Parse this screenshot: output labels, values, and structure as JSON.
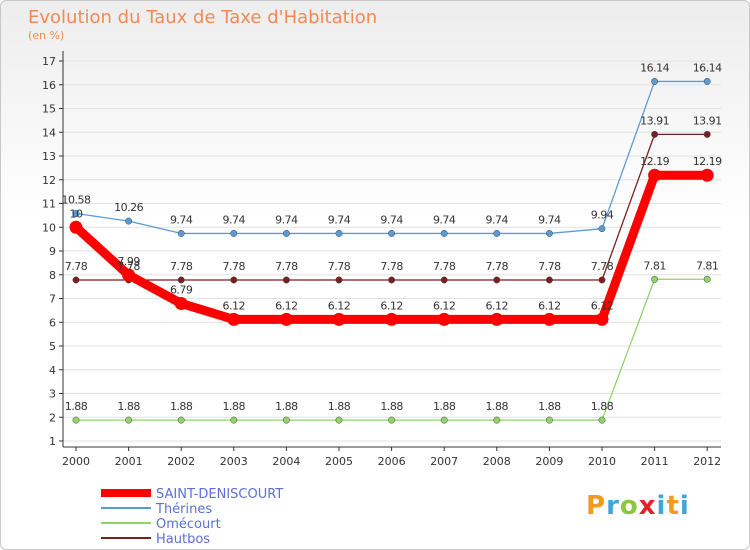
{
  "chart_data": {
    "type": "line",
    "title": "Evolution du Taux de Taxe d'Habitation",
    "subtitle": "(en %)",
    "xlabel": "",
    "ylabel": "(en %)",
    "x": [
      "2000",
      "2001",
      "2002",
      "2003",
      "2004",
      "2005",
      "2006",
      "2007",
      "2008",
      "2009",
      "2010",
      "2011",
      "2012"
    ],
    "ylim": [
      1,
      17
    ],
    "yticks": [
      1,
      2,
      3,
      4,
      5,
      6,
      7,
      8,
      9,
      10,
      11,
      12,
      13,
      14,
      15,
      16,
      17
    ],
    "grid": "horizontal",
    "legend": "bottom-left",
    "series": [
      {
        "name": "SAINT-DENISCOURT",
        "color": "#ff0000",
        "emphasis": true,
        "values": [
          10,
          7.99,
          6.79,
          6.12,
          6.12,
          6.12,
          6.12,
          6.12,
          6.12,
          6.12,
          6.12,
          12.19,
          12.19
        ],
        "labels": [
          "10",
          "7.99",
          "6.79",
          "6.12",
          "6.12",
          "6.12",
          "6.12",
          "6.12",
          "6.12",
          "6.12",
          "6.12",
          "12.19",
          "12.19"
        ]
      },
      {
        "name": "Thérines",
        "color": "#5b9bd5",
        "values": [
          10.58,
          10.26,
          9.74,
          9.74,
          9.74,
          9.74,
          9.74,
          9.74,
          9.74,
          9.74,
          9.94,
          16.14,
          16.14
        ],
        "labels": [
          "10.58",
          "10.26",
          "9.74",
          "9.74",
          "9.74",
          "9.74",
          "9.74",
          "9.74",
          "9.74",
          "9.74",
          "9.94",
          "16.14",
          "16.14"
        ]
      },
      {
        "name": "Omécourt",
        "color": "#8fd468",
        "values": [
          1.88,
          1.88,
          1.88,
          1.88,
          1.88,
          1.88,
          1.88,
          1.88,
          1.88,
          1.88,
          1.88,
          7.81,
          7.81
        ],
        "labels": [
          "1.88",
          "1.88",
          "1.88",
          "1.88",
          "1.88",
          "1.88",
          "1.88",
          "1.88",
          "1.88",
          "1.88",
          "1.88",
          "7.81",
          "7.81"
        ]
      },
      {
        "name": "Hautbos",
        "color": "#7a1f1f",
        "values": [
          7.78,
          7.78,
          7.78,
          7.78,
          7.78,
          7.78,
          7.78,
          7.78,
          7.78,
          7.78,
          7.78,
          13.91,
          13.91
        ],
        "labels": [
          "7.78",
          "7.78",
          "7.78",
          "7.78",
          "7.78",
          "7.78",
          "7.78",
          "7.78",
          "7.78",
          "7.78",
          "7.78",
          "13.91",
          "13.91"
        ]
      }
    ]
  },
  "logo": {
    "p": "P",
    "r": "r",
    "o": "o",
    "x": "x",
    "i": "i",
    "t": "t",
    "i2": "i"
  }
}
